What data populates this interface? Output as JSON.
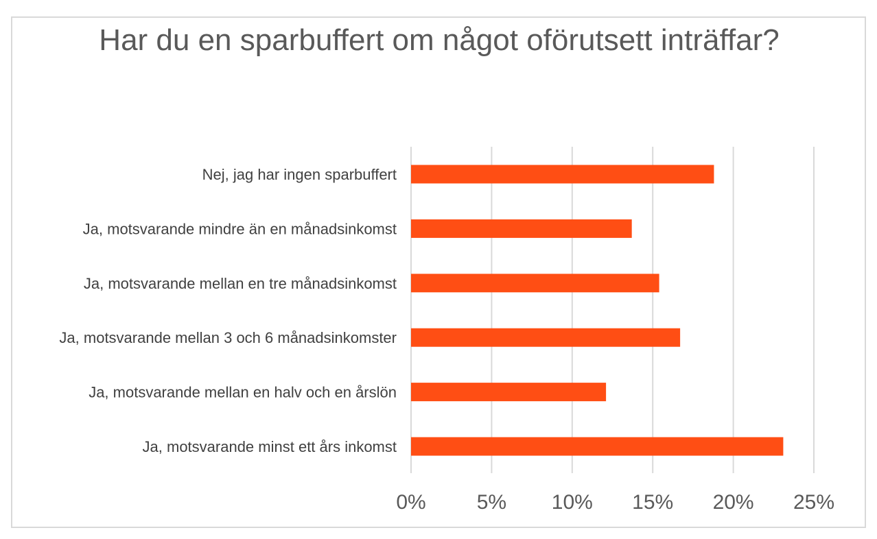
{
  "chart_data": {
    "type": "bar",
    "orientation": "horizontal",
    "title": "Har du en sparbuffert om något oförutsett inträffar?",
    "categories": [
      "Nej, jag har ingen sparbuffert",
      "Ja, motsvarande mindre än en månadsinkomst",
      "Ja, motsvarande mellan en tre månadsinkomst",
      "Ja, motsvarande mellan 3 och 6 månadsinkomster",
      "Ja, motsvarande mellan en halv och en årslön",
      "Ja, motsvarande minst ett års inkomst"
    ],
    "values": [
      18.8,
      13.7,
      15.4,
      16.7,
      12.1,
      23.1
    ],
    "xlim": [
      0,
      25
    ],
    "ticks": [
      0,
      5,
      10,
      15,
      20,
      25
    ],
    "tick_labels": [
      "0%",
      "5%",
      "10%",
      "15%",
      "20%",
      "25%"
    ],
    "xlabel": "",
    "ylabel": "",
    "grid": "vertical",
    "legend": "none",
    "bar_color": "#ff4e14",
    "grid_color": "#d9d9d9"
  }
}
